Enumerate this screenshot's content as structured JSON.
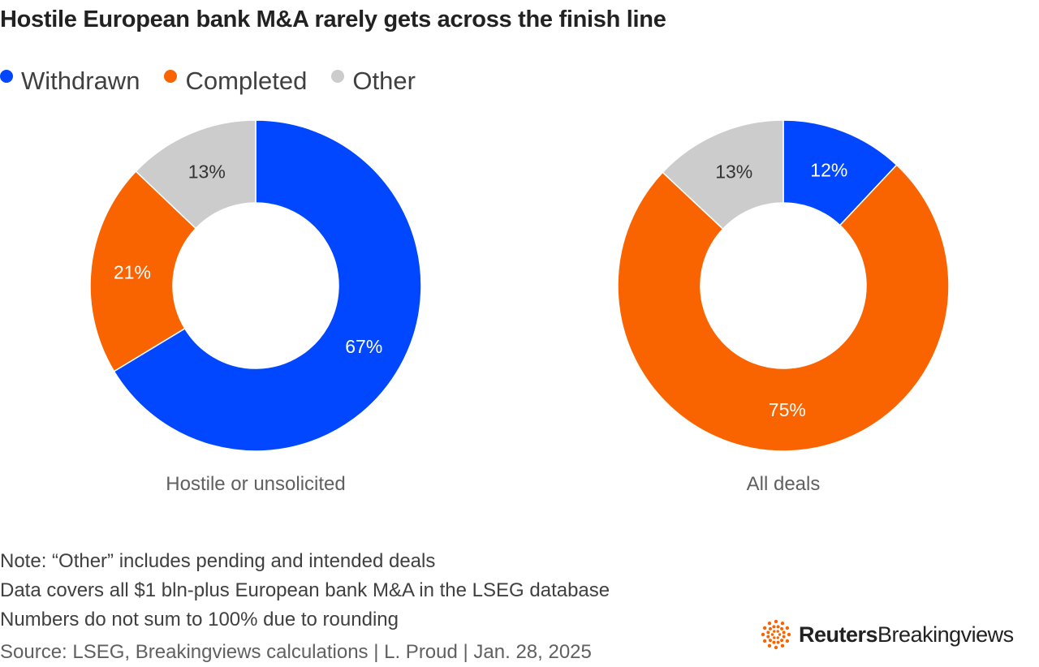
{
  "chart_data": [
    {
      "type": "pie",
      "variant": "donut",
      "title": "Hostile European bank M&A rarely gets across the finish line",
      "sublabel": "Hostile or unsolicited",
      "slices": [
        {
          "name": "Withdrawn",
          "value": 67,
          "label": "67%",
          "color": "#0047ff"
        },
        {
          "name": "Completed",
          "value": 21,
          "label": "21%",
          "color": "#fa6400"
        },
        {
          "name": "Other",
          "value": 13,
          "label": "13%",
          "color": "#cccccc"
        }
      ]
    },
    {
      "type": "pie",
      "variant": "donut",
      "sublabel": "All deals",
      "slices": [
        {
          "name": "Withdrawn",
          "value": 12,
          "label": "12%",
          "color": "#0047ff"
        },
        {
          "name": "Completed",
          "value": 75,
          "label": "75%",
          "color": "#fa6400"
        },
        {
          "name": "Other",
          "value": 13,
          "label": "13%",
          "color": "#cccccc"
        }
      ]
    }
  ],
  "title": "Hostile European bank M&A rarely gets across the finish line",
  "legend": [
    {
      "label": "Withdrawn",
      "color": "#0047ff"
    },
    {
      "label": "Completed",
      "color": "#fa6400"
    },
    {
      "label": "Other",
      "color": "#cccccc"
    }
  ],
  "notes": [
    "Note: “Other” includes pending and intended deals",
    "Data covers all $1 bln-plus European bank M&A in the LSEG database",
    "Numbers do not sum to 100% due to rounding"
  ],
  "source": "Source: LSEG, Breakingviews calculations | L. Proud | Jan. 28, 2025",
  "brand": {
    "primary": "Reuters",
    "secondary": "Breakingviews",
    "logo_icon": "reuters-dot-logo-icon",
    "logo_color": "#fa6400"
  }
}
